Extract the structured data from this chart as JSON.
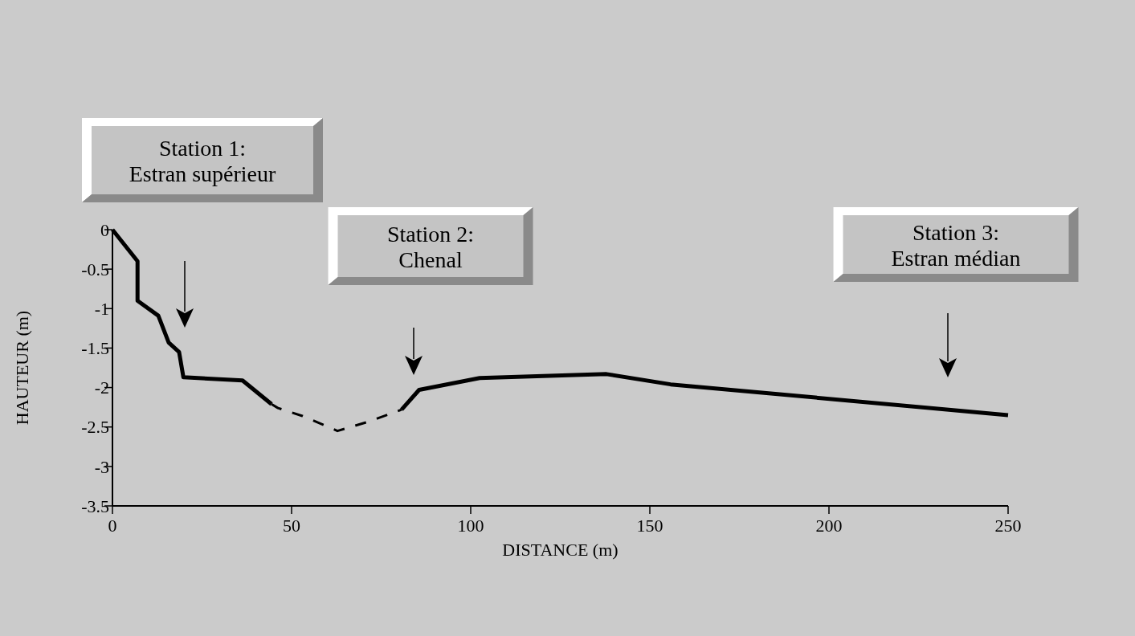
{
  "chart_data": {
    "type": "line",
    "xlabel": "DISTANCE (m)",
    "ylabel": "HAUTEUR (m)",
    "series": [
      {
        "color": "#000000",
        "line_style": "solid",
        "x": [
          0,
          7,
          7,
          12.8,
          15.7,
          18.6,
          19.8,
          36.3,
          44.4
        ],
        "values": [
          0,
          -0.4,
          -0.9,
          -1.09,
          -1.43,
          -1.55,
          -1.87,
          -1.91,
          -2.21
        ]
      },
      {
        "color": "#000000",
        "line_style": "dashed",
        "x": [
          44.4,
          46.2,
          53,
          62.8,
          71.7,
          80.7
        ],
        "values": [
          -2.21,
          -2.26,
          -2.36,
          -2.55,
          -2.43,
          -2.28
        ]
      },
      {
        "color": "#000000",
        "line_style": "solid",
        "x": [
          80.7,
          85.6,
          102.5,
          137.9,
          155.8,
          250
        ],
        "values": [
          -2.28,
          -2.03,
          -1.88,
          -1.83,
          -1.96,
          -2.35
        ]
      }
    ],
    "xlim": [
      0,
      250
    ],
    "xticks": [
      0,
      50,
      100,
      150,
      200,
      250
    ],
    "ylim": [
      -3.5,
      0
    ],
    "yticks": [
      0,
      -0.5,
      -1,
      -1.5,
      -2,
      -2.5,
      -3,
      -3.5
    ],
    "grid": false,
    "marker": "none",
    "annotations": [
      "Station 1:\nEstran supérieur",
      "Station 2:\nChenal",
      "Station 3:\nEstran médian"
    ]
  }
}
